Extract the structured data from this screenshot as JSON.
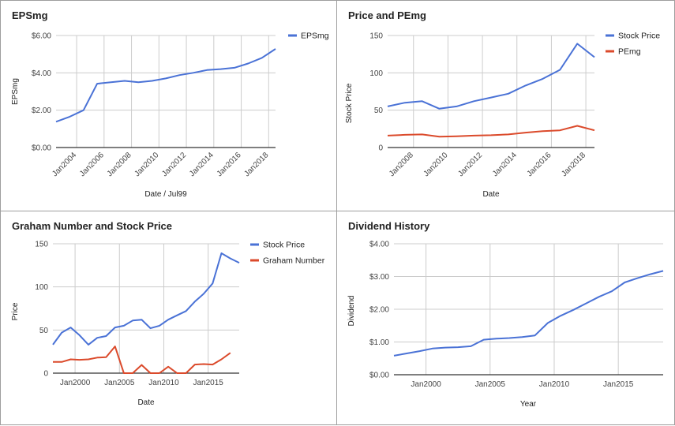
{
  "colors": {
    "blue": "#4a72d6",
    "red": "#db4a2b",
    "grid": "#cccccc",
    "axis": "#333333"
  },
  "chart_data": [
    {
      "type": "line",
      "title": "EPSmg",
      "xlabel": "Date / Jul99",
      "ylabel": "EPSmg",
      "grid": true,
      "legend_position": "top-right",
      "xlim": [
        2002.5,
        2018.5
      ],
      "ylim": [
        0,
        6
      ],
      "xticks": [
        2004,
        2006,
        2008,
        2010,
        2012,
        2014,
        2016,
        2018
      ],
      "xtick_labels": [
        "Jan2004",
        "Jan2006",
        "Jan2008",
        "Jan2010",
        "Jan2012",
        "Jan2014",
        "Jan2016",
        "Jan2018"
      ],
      "xtick_rotate": true,
      "yticks": [
        0,
        2,
        4,
        6
      ],
      "ytick_labels": [
        "$0.00",
        "$2.00",
        "$4.00",
        "$6.00"
      ],
      "series": [
        {
          "name": "EPSmg",
          "color": "#4a72d6",
          "x": [
            2002.5,
            2003.5,
            2004.5,
            2005.5,
            2006.5,
            2007.5,
            2008.5,
            2009.5,
            2010.5,
            2011.5,
            2012.5,
            2013.5,
            2014.5,
            2015.5,
            2016.5,
            2017.5,
            2018.5
          ],
          "y": [
            1.38,
            1.65,
            2.0,
            3.42,
            3.5,
            3.57,
            3.5,
            3.57,
            3.7,
            3.88,
            4.0,
            4.15,
            4.2,
            4.27,
            4.5,
            4.8,
            5.28
          ]
        }
      ]
    },
    {
      "type": "line",
      "title": "Price and PEmg",
      "xlabel": "Date",
      "ylabel": "Stock Price",
      "grid": true,
      "legend_position": "top-right",
      "xlim": [
        2006.5,
        2018.5
      ],
      "ylim": [
        0,
        150
      ],
      "xticks": [
        2008,
        2010,
        2012,
        2014,
        2016,
        2018
      ],
      "xtick_labels": [
        "Jan2008",
        "Jan2010",
        "Jan2012",
        "Jan2014",
        "Jan2016",
        "Jan2018"
      ],
      "xtick_rotate": true,
      "yticks": [
        0,
        50,
        100,
        150
      ],
      "ytick_labels": [
        "0",
        "50",
        "100",
        "150"
      ],
      "series": [
        {
          "name": "Stock Price",
          "color": "#4a72d6",
          "x": [
            2006.5,
            2007.5,
            2008.5,
            2009.5,
            2010.5,
            2011.5,
            2012.5,
            2013.5,
            2014.5,
            2015.5,
            2016.5,
            2017.5,
            2018.5
          ],
          "y": [
            55,
            60,
            62,
            52,
            55,
            62,
            67,
            72,
            83,
            92,
            104,
            139,
            121
          ]
        },
        {
          "name": "PEmg",
          "color": "#db4a2b",
          "x": [
            2006.5,
            2007.5,
            2008.5,
            2009.5,
            2010.5,
            2011.5,
            2012.5,
            2013.5,
            2014.5,
            2015.5,
            2016.5,
            2017.5,
            2018.5
          ],
          "y": [
            16,
            17,
            17.5,
            14.5,
            15,
            16,
            16.5,
            17.5,
            20,
            22,
            23,
            29,
            23
          ]
        }
      ]
    },
    {
      "type": "line",
      "title": "Graham Number and Stock Price",
      "xlabel": "Date",
      "ylabel": "Price",
      "grid": true,
      "legend_position": "top-right",
      "xlim": [
        1997.5,
        2018.5
      ],
      "ylim": [
        0,
        150
      ],
      "xticks": [
        2000,
        2005,
        2010,
        2015
      ],
      "xtick_labels": [
        "Jan2000",
        "Jan2005",
        "Jan2010",
        "Jan2015"
      ],
      "xtick_rotate": false,
      "yticks": [
        0,
        50,
        100,
        150
      ],
      "ytick_labels": [
        "0",
        "50",
        "100",
        "150"
      ],
      "series": [
        {
          "name": "Stock Price",
          "color": "#4a72d6",
          "x": [
            1997.5,
            1998.5,
            1999.5,
            2000.5,
            2001.5,
            2002.5,
            2003.5,
            2004.5,
            2005.5,
            2006.5,
            2007.5,
            2008.5,
            2009.5,
            2010.5,
            2011.5,
            2012.5,
            2013.5,
            2014.5,
            2015.5,
            2016.5,
            2017.5,
            2018.5
          ],
          "y": [
            33,
            47,
            53,
            44,
            33,
            41,
            43,
            53,
            55,
            61,
            62,
            52,
            55,
            62,
            67,
            72,
            83,
            92,
            104,
            139,
            133,
            128
          ]
        },
        {
          "name": "Graham Number",
          "color": "#db4a2b",
          "x": [
            1997.5,
            1998.5,
            1999.5,
            2000.5,
            2001.5,
            2002.5,
            2003.5,
            2004.5,
            2005.5,
            2006.5,
            2007.5,
            2008.5,
            2009.5,
            2010.5,
            2011.5,
            2012.5,
            2013.5,
            2014.5,
            2015.5,
            2016.5,
            2017.5
          ],
          "y": [
            13,
            13,
            16,
            15.5,
            16,
            18,
            18.5,
            31,
            0,
            0,
            9.5,
            0,
            0,
            7.5,
            0,
            0,
            10,
            10.5,
            10,
            16,
            23.5
          ]
        }
      ]
    },
    {
      "type": "line",
      "title": "Dividend History",
      "xlabel": "Year",
      "ylabel": "Dividend",
      "grid": true,
      "legend_position": "none",
      "xlim": [
        1997.5,
        2018.5
      ],
      "ylim": [
        0,
        4
      ],
      "xticks": [
        2000,
        2005,
        2010,
        2015
      ],
      "xtick_labels": [
        "Jan2000",
        "Jan2005",
        "Jan2010",
        "Jan2015"
      ],
      "xtick_rotate": false,
      "yticks": [
        0,
        1,
        2,
        3,
        4
      ],
      "ytick_labels": [
        "$0.00",
        "$1.00",
        "$2.00",
        "$3.00",
        "$4.00"
      ],
      "series": [
        {
          "name": "Dividend",
          "color": "#4a72d6",
          "x": [
            1997.5,
            1998.5,
            1999.5,
            2000.5,
            2001.5,
            2002.5,
            2003.5,
            2004.5,
            2005.5,
            2006.5,
            2007.5,
            2008.5,
            2009.5,
            2010.5,
            2011.5,
            2012.5,
            2013.5,
            2014.5,
            2015.5,
            2016.5,
            2017.5,
            2018.5
          ],
          "y": [
            0.58,
            0.65,
            0.72,
            0.8,
            0.83,
            0.84,
            0.87,
            1.07,
            1.1,
            1.12,
            1.15,
            1.2,
            1.58,
            1.8,
            1.98,
            2.18,
            2.38,
            2.55,
            2.82,
            2.95,
            3.07,
            3.17
          ]
        }
      ]
    }
  ]
}
